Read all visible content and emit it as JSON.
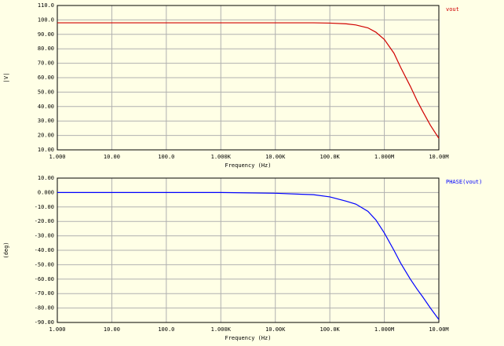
{
  "chart_data": [
    {
      "type": "line",
      "x_label": "Frequency (Hz)",
      "y_label": "|V|",
      "x_scale": "log",
      "grid": true,
      "x": [
        1,
        10,
        100,
        1000,
        10000,
        50000,
        100000,
        200000,
        300000,
        500000,
        700000,
        1000000,
        1500000,
        2000000,
        3000000,
        4000000,
        5000000,
        7000000,
        10000000
      ],
      "series": [
        {
          "name": "vout",
          "color": "#d00000",
          "values": [
            98,
            98,
            98,
            98,
            98,
            98,
            97.8,
            97.3,
            96.5,
            94.5,
            91.5,
            86.5,
            77,
            67,
            54,
            44,
            37,
            27,
            18
          ]
        }
      ],
      "xlim": [
        1,
        10000000
      ],
      "xticks": [
        {
          "value": 1,
          "label": "1.000"
        },
        {
          "value": 10,
          "label": "10.00"
        },
        {
          "value": 100,
          "label": "100.0"
        },
        {
          "value": 1000,
          "label": "1.000K"
        },
        {
          "value": 10000,
          "label": "10.00K"
        },
        {
          "value": 100000,
          "label": "100.0K"
        },
        {
          "value": 1000000,
          "label": "1.000M"
        },
        {
          "value": 10000000,
          "label": "10.00M"
        }
      ],
      "ylim": [
        10,
        110
      ],
      "yticks": [
        {
          "value": 10,
          "label": "10.00"
        },
        {
          "value": 20,
          "label": "20.00"
        },
        {
          "value": 30,
          "label": "30.00"
        },
        {
          "value": 40,
          "label": "40.00"
        },
        {
          "value": 50,
          "label": "50.00"
        },
        {
          "value": 60,
          "label": "60.00"
        },
        {
          "value": 70,
          "label": "70.00"
        },
        {
          "value": 80,
          "label": "80.00"
        },
        {
          "value": 90,
          "label": "90.00"
        },
        {
          "value": 100,
          "label": "100.0"
        },
        {
          "value": 110,
          "label": "110.0"
        }
      ]
    },
    {
      "type": "line",
      "x_label": "Frequency (Hz)",
      "y_label": "(deg)",
      "x_scale": "log",
      "grid": true,
      "x": [
        1,
        10,
        100,
        1000,
        10000,
        50000,
        100000,
        200000,
        300000,
        500000,
        700000,
        1000000,
        1500000,
        2000000,
        3000000,
        4000000,
        5000000,
        7000000,
        10000000
      ],
      "series": [
        {
          "name": "PHASE(vout)",
          "color": "#0000ff",
          "values": [
            0,
            0,
            0,
            0,
            -0.5,
            -1.5,
            -3,
            -6,
            -8,
            -13,
            -19,
            -28,
            -40,
            -49,
            -60,
            -67,
            -72,
            -80,
            -88
          ]
        }
      ],
      "xlim": [
        1,
        10000000
      ],
      "xticks": [
        {
          "value": 1,
          "label": "1.000"
        },
        {
          "value": 10,
          "label": "10.00"
        },
        {
          "value": 100,
          "label": "100.0"
        },
        {
          "value": 1000,
          "label": "1.000K"
        },
        {
          "value": 10000,
          "label": "10.00K"
        },
        {
          "value": 100000,
          "label": "100.0K"
        },
        {
          "value": 1000000,
          "label": "1.000M"
        },
        {
          "value": 10000000,
          "label": "10.00M"
        }
      ],
      "ylim": [
        -90,
        10
      ],
      "yticks": [
        {
          "value": -90,
          "label": "-90.00"
        },
        {
          "value": -80,
          "label": "-80.00"
        },
        {
          "value": -70,
          "label": "-70.00"
        },
        {
          "value": -60,
          "label": "-60.00"
        },
        {
          "value": -50,
          "label": "-50.00"
        },
        {
          "value": -40,
          "label": "-40.00"
        },
        {
          "value": -30,
          "label": "-30.00"
        },
        {
          "value": -20,
          "label": "-20.00"
        },
        {
          "value": -10,
          "label": "-10.00"
        },
        {
          "value": 0,
          "label": "0.000"
        },
        {
          "value": 10,
          "label": "10.00"
        }
      ]
    }
  ]
}
